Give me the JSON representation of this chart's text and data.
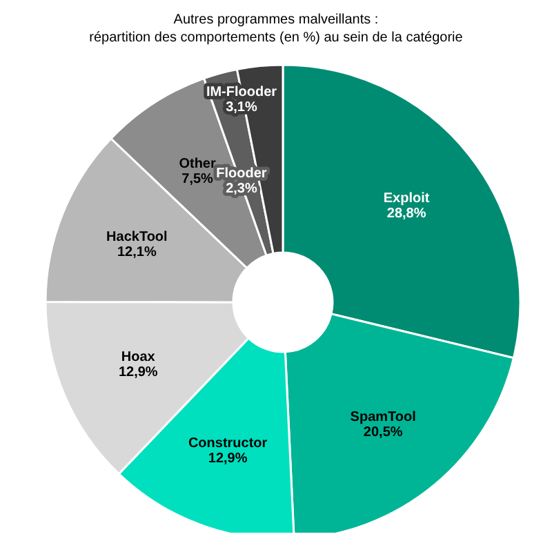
{
  "chart_data": {
    "type": "donut",
    "title": "Autres programmes malveillants :",
    "subtitle": "répartition des comportements (en %) au sein de la catégorie",
    "categories": [
      "Exploit",
      "SpamTool",
      "Constructor",
      "Hoax",
      "HackTool",
      "Other",
      "Flooder",
      "IM-Flooder"
    ],
    "values": [
      28.8,
      20.5,
      12.9,
      12.9,
      12.1,
      7.5,
      2.3,
      3.1
    ],
    "value_labels": [
      "28,8%",
      "20,5%",
      "12,9%",
      "12,9%",
      "12,1%",
      "7,5%",
      "2,3%",
      "3,1%"
    ],
    "colors": [
      "#008c72",
      "#00b596",
      "#00e0bf",
      "#d9d9d9",
      "#b8b8b8",
      "#8c8c8c",
      "#5e5e5e",
      "#3c3c3c"
    ],
    "legend": false
  }
}
